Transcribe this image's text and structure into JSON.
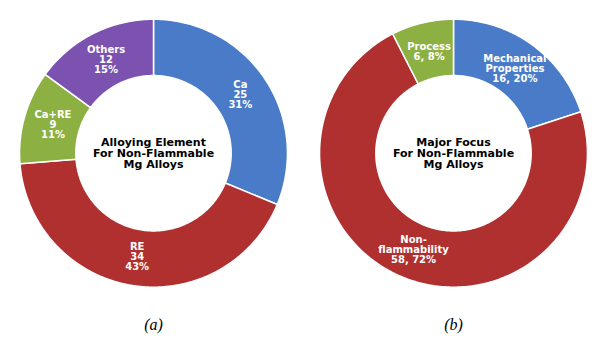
{
  "chart_data": [
    {
      "type": "pie",
      "title": "(a)",
      "annotations": [
        "Alloying Element\nFor Non-Flammable\nMg Alloys"
      ],
      "categories": [
        "Ca",
        "RE",
        "Ca+RE",
        "Others"
      ],
      "values": [
        25,
        34,
        9,
        12
      ],
      "value_labels": [
        "25\n31%",
        "34\n43%",
        "9\n11%",
        "12\n15%"
      ],
      "colors": [
        "#4A7BC8",
        "#B03030",
        "#8DB043",
        "#7B52B0"
      ],
      "data_labels": true,
      "tick_labels": false
    },
    {
      "type": "pie",
      "title": "(b)",
      "annotations": [
        "Major Focus\nFor Non-Flammable\nMg Alloys"
      ],
      "categories": [
        "Mechanical\nProperties",
        "Non-\nflammability",
        "Process"
      ],
      "values": [
        16,
        58,
        6
      ],
      "value_labels": [
        "16, 20%",
        "58, 72%",
        "6, 8%"
      ],
      "colors": [
        "#4A7BC8",
        "#B03030",
        "#8DB043"
      ],
      "data_labels": true,
      "tick_labels": false
    }
  ]
}
